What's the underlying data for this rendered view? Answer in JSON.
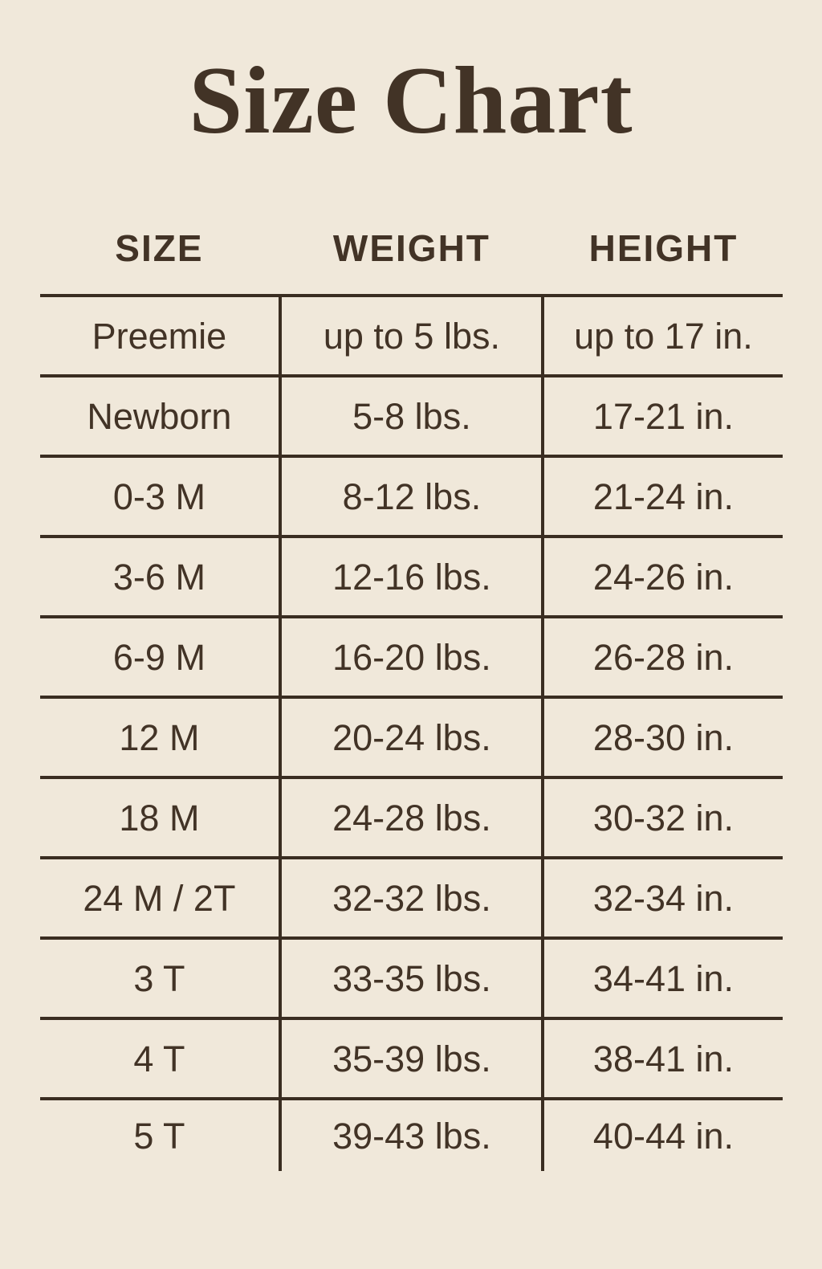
{
  "page": {
    "title": "Size Chart"
  },
  "colors": {
    "background": "#f0e8da",
    "text": "#423326",
    "line": "#3a2d21"
  },
  "chart_data": {
    "type": "table",
    "title": "Size Chart",
    "columns": [
      "SIZE",
      "WEIGHT",
      "HEIGHT"
    ],
    "rows": [
      [
        "Preemie",
        "up to 5 lbs.",
        "up to 17 in."
      ],
      [
        "Newborn",
        "5-8 lbs.",
        "17-21 in."
      ],
      [
        "0-3 M",
        "8-12 lbs.",
        "21-24 in."
      ],
      [
        "3-6 M",
        "12-16 lbs.",
        "24-26 in."
      ],
      [
        "6-9 M",
        "16-20 lbs.",
        "26-28 in."
      ],
      [
        "12 M",
        "20-24 lbs.",
        "28-30 in."
      ],
      [
        "18 M",
        "24-28 lbs.",
        "30-32 in."
      ],
      [
        "24 M / 2T",
        "32-32 lbs.",
        "32-34 in."
      ],
      [
        "3 T",
        "33-35 lbs.",
        "34-41 in."
      ],
      [
        "4 T",
        "35-39 lbs.",
        "38-41 in."
      ],
      [
        "5 T",
        "39-43 lbs.",
        "40-44 in."
      ]
    ]
  }
}
